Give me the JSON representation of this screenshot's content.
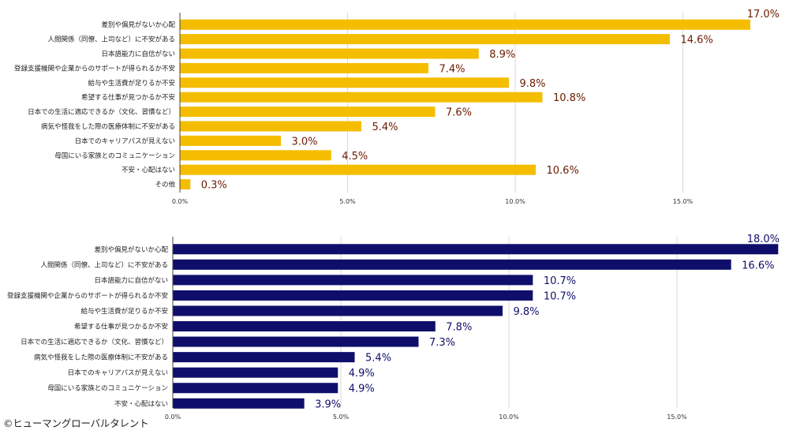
{
  "credit": "©ヒューマングローバルタレント",
  "chart_data": [
    {
      "type": "bar",
      "orientation": "horizontal",
      "color": "#f5bd00",
      "label_color": "#6b1a00",
      "categories": [
        "差別や偏見がないか心配",
        "人間関係（同僚、上司など）に不安がある",
        "日本語能力に自信がない",
        "登録支援機関や企業からのサポートが得られるか不安",
        "給与や生活費が足りるか不安",
        "希望する仕事が見つかるか不安",
        "日本での生活に適応できるか（文化、習慣など）",
        "病気や怪我をした際の医療体制に不安がある",
        "日本でのキャリアパスが見えない",
        "母国にいる家族とのコミュニケーション",
        "不安・心配はない",
        "その他"
      ],
      "values": [
        17.0,
        14.6,
        8.9,
        7.4,
        9.8,
        10.8,
        7.6,
        5.4,
        3.0,
        4.5,
        10.6,
        0.3
      ],
      "value_labels": [
        "17.0%",
        "14.6%",
        "8.9%",
        "7.4%",
        "9.8%",
        "10.8%",
        "7.6%",
        "5.4%",
        "3.0%",
        "4.5%",
        "10.6%",
        "0.3%"
      ],
      "xlim": [
        0,
        18
      ],
      "xticks": [
        0,
        5,
        10,
        15
      ],
      "xtick_labels": [
        "0.0%",
        "5.0%",
        "10.0%",
        "15.0%"
      ],
      "grid": true
    },
    {
      "type": "bar",
      "orientation": "horizontal",
      "color": "#0f0f6b",
      "label_color": "#0f0f6b",
      "categories": [
        "差別や偏見がないか心配",
        "人間関係（同僚、上司など）に不安がある",
        "日本語能力に自信がない",
        "登録支援機関や企業からのサポートが得られるか不安",
        "給与や生活費が足りるか不安",
        "希望する仕事が見つかるか不安",
        "日本での生活に適応できるか（文化、習慣など）",
        "病気や怪我をした際の医療体制に不安がある",
        "日本でのキャリアパスが見えない",
        "母国にいる家族とのコミュニケーション",
        "不安・心配はない"
      ],
      "values": [
        18.0,
        16.6,
        10.7,
        10.7,
        9.8,
        7.8,
        7.3,
        5.4,
        4.9,
        4.9,
        3.9
      ],
      "value_labels": [
        "18.0%",
        "16.6%",
        "10.7%",
        "10.7%",
        "9.8%",
        "7.8%",
        "7.3%",
        "5.4%",
        "4.9%",
        "4.9%",
        "3.9%"
      ],
      "xlim": [
        0,
        18
      ],
      "xticks": [
        0,
        5,
        10,
        15
      ],
      "xtick_labels": [
        "0.0%",
        "5.0%",
        "10.0%",
        "15.0%"
      ],
      "grid": true
    }
  ]
}
